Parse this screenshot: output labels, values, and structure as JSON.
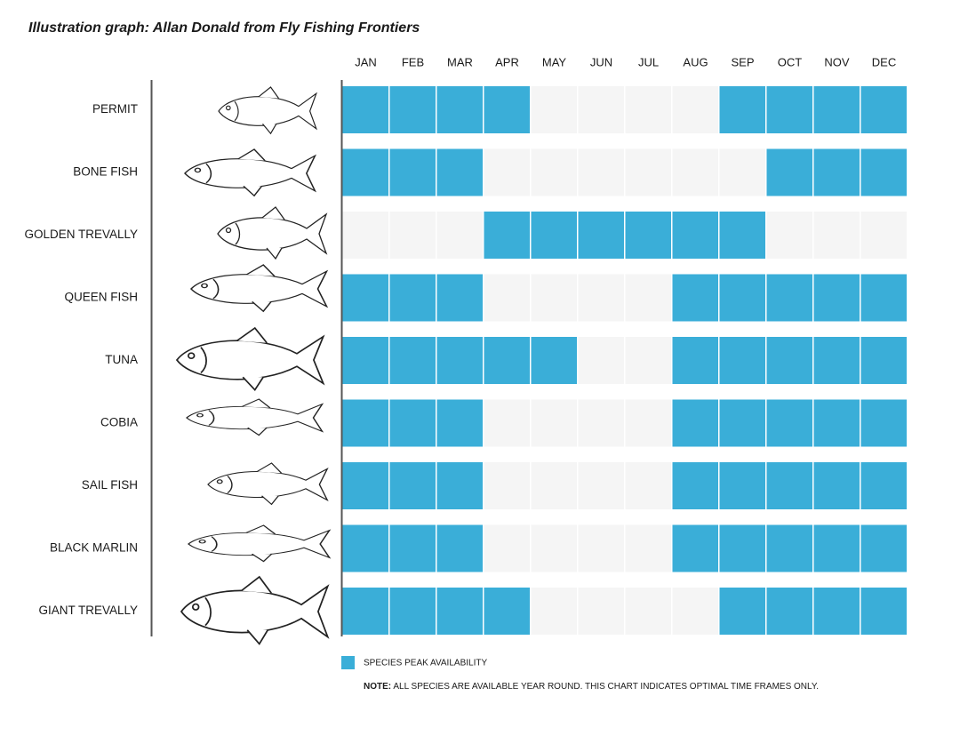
{
  "chart_data": {
    "type": "availability-grid",
    "title": "Illustration graph: Allan Donald from Fly Fishing Frontiers",
    "categories": [
      "JAN",
      "FEB",
      "MAR",
      "APR",
      "MAY",
      "JUN",
      "JUL",
      "AUG",
      "SEP",
      "OCT",
      "NOV",
      "DEC"
    ],
    "color": "#3aaed8",
    "background_color": "#f5f5f5",
    "legend_label": "SPECIES PEAK AVAILABILITY",
    "note_label": "NOTE:",
    "note": "ALL SPECIES ARE AVAILABLE YEAR ROUND. THIS CHART INDICATES OPTIMAL TIME FRAMES ONLY.",
    "rows": [
      {
        "name": "PERMIT",
        "values": [
          1,
          1,
          1,
          1,
          0,
          0,
          0,
          0,
          1,
          1,
          1,
          1
        ]
      },
      {
        "name": "BONE FISH",
        "values": [
          1,
          1,
          1,
          0,
          0,
          0,
          0,
          0,
          0,
          1,
          1,
          1
        ]
      },
      {
        "name": "GOLDEN TREVALLY",
        "values": [
          0,
          0,
          0,
          1,
          1,
          1,
          1,
          1,
          1,
          0,
          0,
          0
        ]
      },
      {
        "name": "QUEEN FISH",
        "values": [
          1,
          1,
          1,
          0,
          0,
          0,
          0,
          1,
          1,
          1,
          1,
          1
        ]
      },
      {
        "name": "TUNA",
        "values": [
          1,
          1,
          1,
          1,
          1,
          0,
          0,
          1,
          1,
          1,
          1,
          1
        ]
      },
      {
        "name": "COBIA",
        "values": [
          1,
          1,
          1,
          0,
          0,
          0,
          0,
          1,
          1,
          1,
          1,
          1
        ]
      },
      {
        "name": "SAIL FISH",
        "values": [
          1,
          1,
          1,
          0,
          0,
          0,
          0,
          1,
          1,
          1,
          1,
          1
        ]
      },
      {
        "name": "BLACK MARLIN",
        "values": [
          1,
          1,
          1,
          0,
          0,
          0,
          0,
          1,
          1,
          1,
          1,
          1
        ]
      },
      {
        "name": "GIANT  TREVALLY",
        "values": [
          1,
          1,
          1,
          1,
          0,
          0,
          0,
          0,
          1,
          1,
          1,
          1
        ]
      }
    ]
  }
}
